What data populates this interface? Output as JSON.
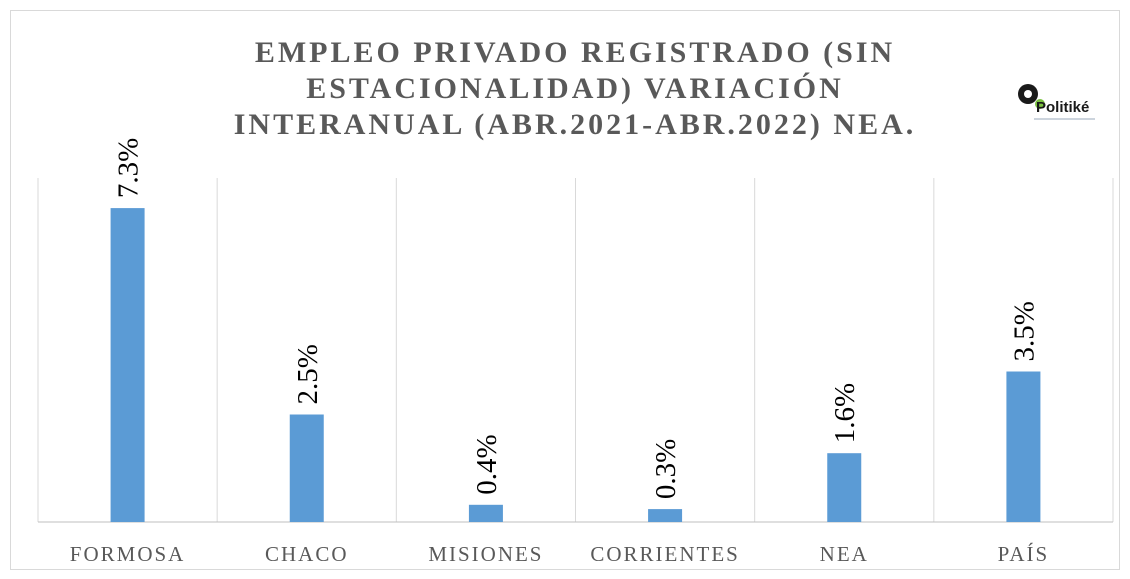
{
  "chart_data": {
    "type": "bar",
    "title": [
      "EMPLEO PRIVADO REGISTRADO (SIN",
      "ESTACIONALIDAD) VARIACIÓN",
      "INTERANUAL (ABR.2021-ABR.2022) NEA."
    ],
    "logo": "Politiké",
    "categories": [
      "FORMOSA",
      "CHACO",
      "MISIONES",
      "CORRIENTES",
      "NEA",
      "PAÍS"
    ],
    "values": [
      7.3,
      2.5,
      0.4,
      0.3,
      1.6,
      3.5
    ],
    "value_labels": [
      "7.3%",
      "2.5%",
      "0.4%",
      "0.3%",
      "1.6%",
      "3.5%"
    ],
    "color": "#5b9bd5",
    "ylim": [
      0,
      8
    ]
  }
}
